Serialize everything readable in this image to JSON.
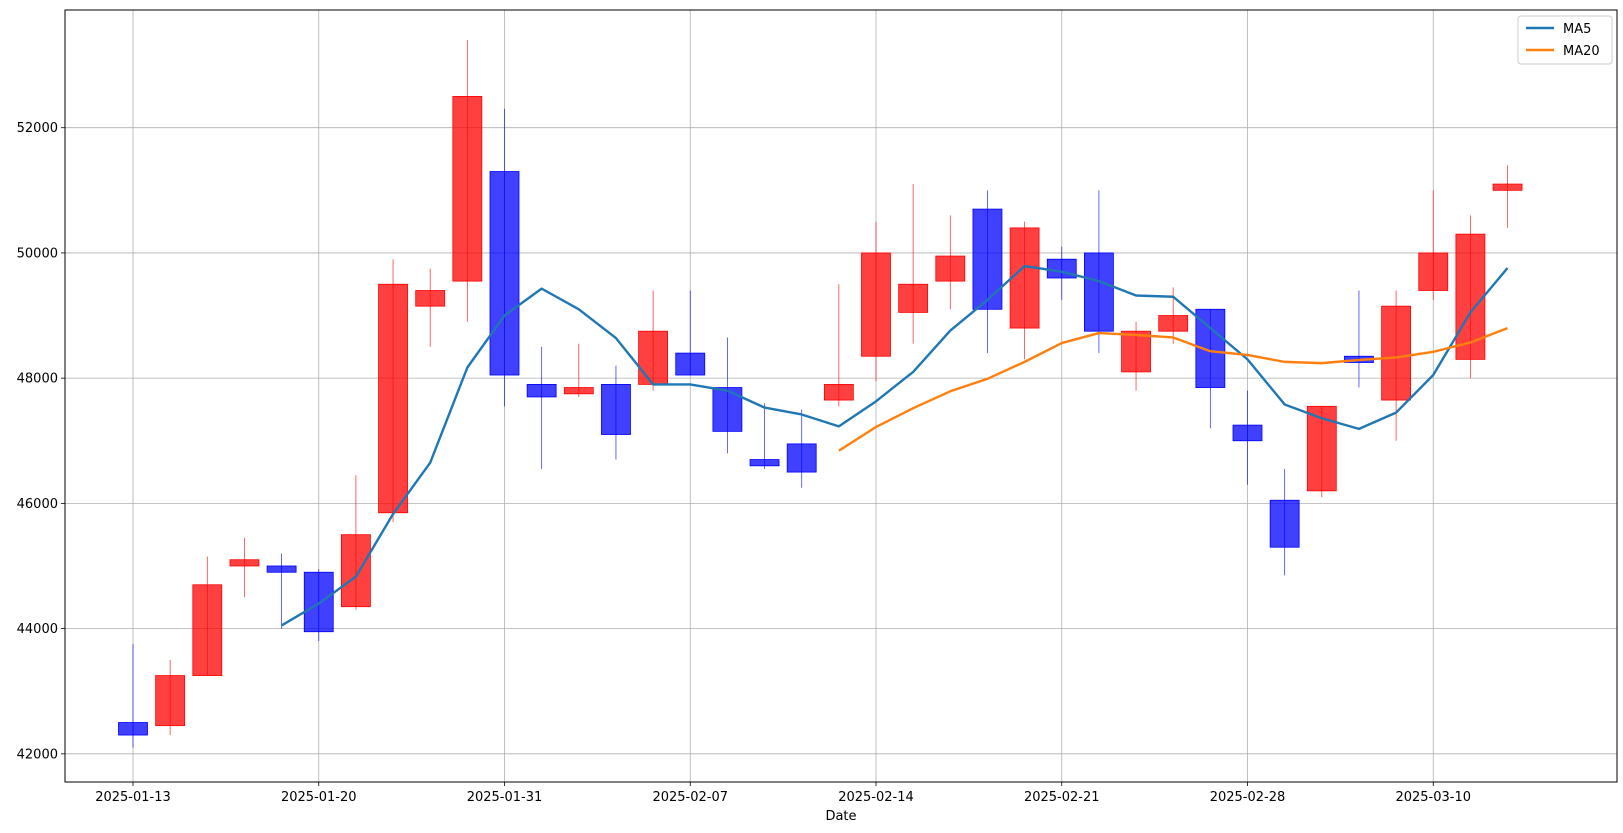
{
  "chart_data": {
    "type": "candlestick",
    "title": "",
    "xlabel": "Date",
    "ylabel": "",
    "ylim": [
      41550,
      53880
    ],
    "grid": true,
    "legend_position": "top-right",
    "x_tick_labels": [
      "2025-01-13",
      "2025-01-20",
      "2025-01-31",
      "2025-02-07",
      "2025-02-14",
      "2025-02-21",
      "2025-02-28",
      "2025-03-10"
    ],
    "y_ticks": [
      42000,
      44000,
      46000,
      48000,
      50000,
      52000
    ],
    "y_tick_labels": [
      "42000",
      "44000",
      "46000",
      "48000",
      "50000",
      "52000"
    ],
    "up_color": "#ff0000",
    "down_color": "#0000ff",
    "candles": [
      {
        "label": "2025-01-13",
        "open": 42500,
        "high": 43750,
        "low": 42100,
        "close": 42300
      },
      {
        "label": "",
        "open": 42450,
        "high": 43500,
        "low": 42300,
        "close": 43250
      },
      {
        "label": "",
        "open": 43250,
        "high": 45150,
        "low": 43250,
        "close": 44700
      },
      {
        "label": "",
        "open": 45000,
        "high": 45450,
        "low": 44500,
        "close": 45100
      },
      {
        "label": "",
        "open": 45000,
        "high": 45200,
        "low": 44000,
        "close": 44900
      },
      {
        "label": "2025-01-20",
        "open": 44900,
        "high": 44950,
        "low": 43800,
        "close": 43950
      },
      {
        "label": "",
        "open": 44350,
        "high": 46450,
        "low": 44300,
        "close": 45500
      },
      {
        "label": "",
        "open": 45850,
        "high": 49900,
        "low": 45700,
        "close": 49500
      },
      {
        "label": "",
        "open": 49150,
        "high": 49750,
        "low": 48500,
        "close": 49400
      },
      {
        "label": "",
        "open": 49550,
        "high": 53400,
        "low": 48900,
        "close": 52500
      },
      {
        "label": "2025-01-31",
        "open": 51300,
        "high": 52300,
        "low": 47550,
        "close": 48050
      },
      {
        "label": "",
        "open": 47900,
        "high": 48500,
        "low": 46550,
        "close": 47700
      },
      {
        "label": "",
        "open": 47750,
        "high": 48550,
        "low": 47700,
        "close": 47850
      },
      {
        "label": "",
        "open": 47900,
        "high": 48200,
        "low": 46700,
        "close": 47100
      },
      {
        "label": "",
        "open": 47900,
        "high": 49400,
        "low": 47800,
        "close": 48750
      },
      {
        "label": "2025-02-07",
        "open": 48400,
        "high": 49400,
        "low": 48050,
        "close": 48050
      },
      {
        "label": "",
        "open": 47850,
        "high": 48650,
        "low": 46800,
        "close": 47150
      },
      {
        "label": "",
        "open": 46700,
        "high": 47600,
        "low": 46550,
        "close": 46600
      },
      {
        "label": "",
        "open": 46950,
        "high": 47500,
        "low": 46250,
        "close": 46500
      },
      {
        "label": "",
        "open": 47650,
        "high": 49500,
        "low": 47550,
        "close": 47900
      },
      {
        "label": "2025-02-14",
        "open": 48350,
        "high": 50500,
        "low": 47950,
        "close": 50000
      },
      {
        "label": "",
        "open": 49050,
        "high": 51100,
        "low": 48550,
        "close": 49500
      },
      {
        "label": "",
        "open": 49550,
        "high": 50600,
        "low": 49100,
        "close": 49950
      },
      {
        "label": "",
        "open": 50700,
        "high": 51000,
        "low": 48400,
        "close": 49100
      },
      {
        "label": "",
        "open": 48800,
        "high": 50500,
        "low": 48300,
        "close": 50400
      },
      {
        "label": "2025-02-21",
        "open": 49900,
        "high": 50100,
        "low": 49250,
        "close": 49600
      },
      {
        "label": "",
        "open": 50000,
        "high": 51000,
        "low": 48400,
        "close": 48750
      },
      {
        "label": "",
        "open": 48100,
        "high": 48900,
        "low": 47800,
        "close": 48750
      },
      {
        "label": "",
        "open": 48750,
        "high": 49450,
        "low": 48550,
        "close": 49000
      },
      {
        "label": "",
        "open": 49100,
        "high": 49100,
        "low": 47200,
        "close": 47850
      },
      {
        "label": "2025-02-28",
        "open": 47250,
        "high": 47800,
        "low": 46300,
        "close": 47000
      },
      {
        "label": "",
        "open": 46050,
        "high": 46550,
        "low": 44850,
        "close": 45300
      },
      {
        "label": "",
        "open": 46200,
        "high": 47550,
        "low": 46100,
        "close": 47550
      },
      {
        "label": "",
        "open": 48350,
        "high": 49400,
        "low": 47850,
        "close": 48250
      },
      {
        "label": "",
        "open": 47650,
        "high": 49400,
        "low": 47000,
        "close": 49150
      },
      {
        "label": "2025-03-10",
        "open": 49400,
        "high": 51000,
        "low": 49250,
        "close": 50000
      },
      {
        "label": "",
        "open": 48300,
        "high": 50600,
        "low": 48000,
        "close": 50300
      },
      {
        "label": "",
        "open": 51000,
        "high": 51400,
        "low": 50400,
        "close": 51100
      }
    ],
    "series": [
      {
        "name": "MA5",
        "color": "#1f77b4",
        "values": [
          null,
          null,
          null,
          null,
          44050,
          44400,
          44830,
          45830,
          46650,
          48170,
          49000,
          49430,
          49100,
          48640,
          47900,
          47900,
          47800,
          47530,
          47420,
          47230,
          47630,
          48100,
          48760,
          49250,
          49790,
          49700,
          49550,
          49320,
          49300,
          48800,
          48300,
          47580,
          47360,
          47190,
          47450,
          48050,
          49050,
          49760
        ]
      },
      {
        "name": "MA20",
        "color": "#ff7f0e",
        "values": [
          null,
          null,
          null,
          null,
          null,
          null,
          null,
          null,
          null,
          null,
          null,
          null,
          null,
          null,
          null,
          null,
          null,
          null,
          null,
          46840,
          47220,
          47520,
          47790,
          47990,
          48260,
          48560,
          48720,
          48690,
          48650,
          48430,
          48370,
          48260,
          48240,
          48290,
          48330,
          48420,
          48570,
          48800
        ]
      }
    ]
  }
}
